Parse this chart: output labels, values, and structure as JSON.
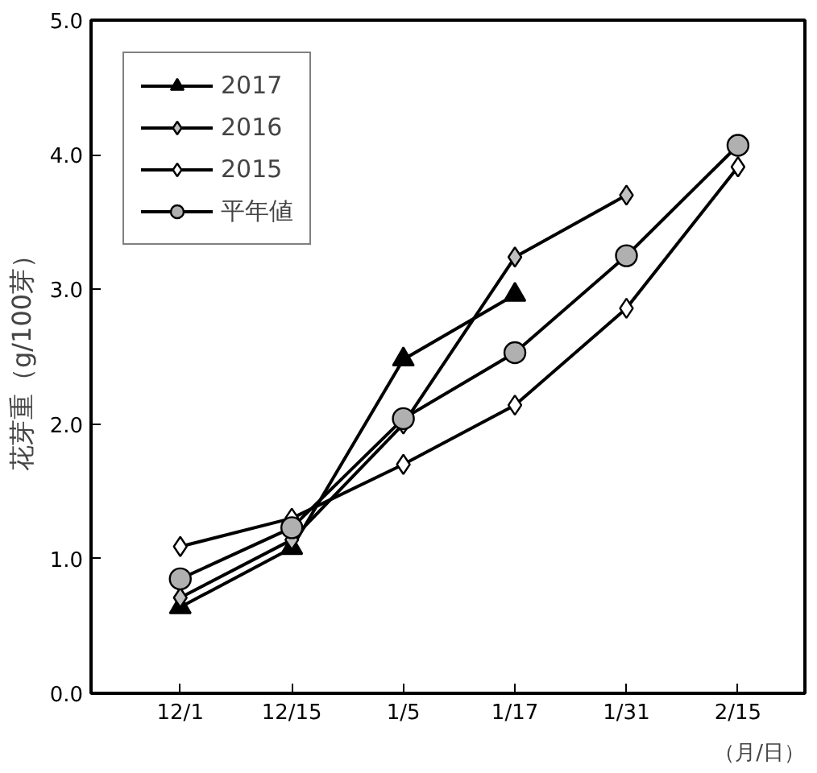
{
  "chart_data": {
    "type": "line",
    "xlabel": "（月/日）",
    "ylabel": "花芽重（g/100芽）",
    "categories": [
      "12/1",
      "12/15",
      "1/5",
      "1/17",
      "1/31",
      "2/15"
    ],
    "series": [
      {
        "name": "2017",
        "color": "#000000",
        "marker": "triangle",
        "values": [
          0.64,
          1.08,
          2.48,
          2.96,
          null,
          null
        ]
      },
      {
        "name": "2016",
        "color": "#c0c0c0",
        "marker": "diamond",
        "values": [
          0.71,
          1.14,
          2.0,
          3.24,
          3.7,
          null
        ]
      },
      {
        "name": "2015",
        "color": "#ffffff",
        "marker": "diamond",
        "values": [
          1.09,
          1.3,
          1.7,
          2.14,
          2.86,
          3.91
        ]
      },
      {
        "name": "平年値",
        "color": "#b0b0b0",
        "marker": "circle",
        "values": [
          0.85,
          1.23,
          2.04,
          2.53,
          3.25,
          4.07
        ]
      }
    ],
    "ylim": [
      0,
      5
    ],
    "yticks": [
      {
        "value": 0,
        "label": "0.0"
      },
      {
        "value": 1,
        "label": "1.0"
      },
      {
        "value": 2,
        "label": "2.0"
      },
      {
        "value": 3,
        "label": "3.0"
      },
      {
        "value": 4,
        "label": "4.0"
      },
      {
        "value": 5,
        "label": "5.0"
      }
    ],
    "grid": false,
    "legend": "top left",
    "line_style": "solid"
  }
}
